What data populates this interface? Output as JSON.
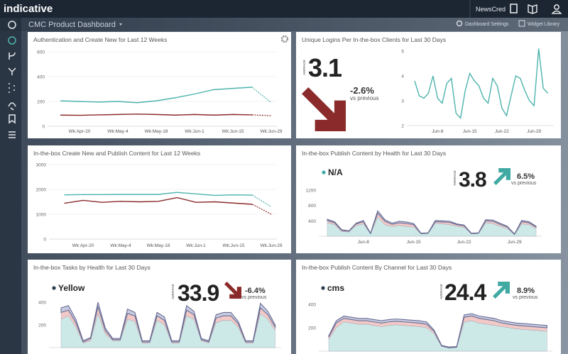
{
  "header": {
    "logo": "indicative",
    "account": "NewsCred"
  },
  "toolbar": {
    "title": "CMC Product Dashboard",
    "settings": "Dashboard Settings",
    "library": "Widget Library"
  },
  "panels": [
    {
      "title": "Authentication and Create New for Last 12 Weeks",
      "chart": {
        "type": "line",
        "dashed_last": true,
        "grid": true,
        "categories": [
          null,
          "Wk:Apr-20",
          null,
          "Wk:May-4",
          null,
          "Wk:May-18",
          null,
          "Wk:Jun-1",
          null,
          "Wk:Jun-15",
          null,
          "Wk:Jun-29"
        ],
        "series": [
          {
            "color": "#4cb3ad",
            "values": [
              205,
              200,
              195,
              200,
              190,
              205,
              230,
              260,
              295,
              305,
              315,
              190
            ]
          },
          {
            "color": "#8b2a2a",
            "values": [
              90,
              88,
              92,
              95,
              98,
              95,
              90,
              95,
              90,
              95,
              92,
              85
            ]
          }
        ],
        "ylim": [
          0,
          600
        ],
        "yticks": [
          0,
          200,
          400,
          600
        ]
      }
    },
    {
      "title": "Unique Logins Per In-the-box Clients for Last 30 Days",
      "kpi": {
        "label": "AVERAGE",
        "value": "3.1",
        "change": "-2.6%",
        "compare": "vs previous",
        "trend": "down",
        "color": "#8b2a2a"
      },
      "chart": {
        "type": "line",
        "grid": false,
        "categories": [
          null,
          null,
          null,
          null,
          null,
          "Jun-8",
          null,
          null,
          null,
          null,
          null,
          null,
          "Jun-15",
          null,
          null,
          null,
          null,
          null,
          null,
          "Jun-22",
          null,
          null,
          null,
          null,
          null,
          null,
          "Jun-29",
          null,
          null,
          null
        ],
        "series": [
          {
            "color": "#4cb3ad",
            "values": [
              3.8,
              3.2,
              3.1,
              3.3,
              4.0,
              3.1,
              2.9,
              3.7,
              3.9,
              2.5,
              2.3,
              3.4,
              4.1,
              3.8,
              3.6,
              3.1,
              2.9,
              3.9,
              3.6,
              2.7,
              2.4,
              3.2,
              4.0,
              3.9,
              3.4,
              3.0,
              2.8,
              5.1,
              3.5,
              3.3
            ]
          }
        ],
        "ylim": [
          2,
          5
        ],
        "yticks": [
          2,
          3,
          4,
          5
        ]
      }
    },
    {
      "title": "In-the-box Create New and Publish Content for Last 12 Weeks",
      "chart": {
        "type": "line",
        "dashed_last": true,
        "grid": true,
        "categories": [
          null,
          "Wk:Apr-20",
          null,
          "Wk:May-4",
          null,
          "Wk:May-18",
          null,
          "Wk:Jun-1",
          null,
          "Wk:Jun-15",
          null,
          "Wk:Jun-29"
        ],
        "series": [
          {
            "color": "#4cb3ad",
            "values": [
              1780,
              1790,
              1790,
              1800,
              1800,
              1800,
              1880,
              1820,
              1760,
              1780,
              1770,
              1300
            ]
          },
          {
            "color": "#8b2a2a",
            "values": [
              1440,
              1560,
              1480,
              1520,
              1500,
              1520,
              1670,
              1480,
              1500,
              1450,
              1400,
              1000
            ]
          }
        ],
        "ylim": [
          0,
          3000
        ],
        "yticks": [
          0,
          1000,
          2000,
          3000
        ]
      }
    },
    {
      "title": "In-the-box Publish Content by Health for Last 30 Days",
      "kpi": {
        "label": "AVERAGE",
        "value": "3.8",
        "change": "6.5%",
        "compare": "vs previous",
        "trend": "up",
        "color": "#3fa9a2"
      },
      "chart": {
        "type": "area",
        "grid": false,
        "categories": [
          null,
          null,
          null,
          null,
          null,
          "Jun-8",
          null,
          null,
          null,
          null,
          null,
          null,
          "Jun-15",
          null,
          null,
          null,
          null,
          null,
          null,
          "Jun-22",
          null,
          null,
          null,
          null,
          null,
          null,
          "Jun-29",
          null,
          null,
          null
        ],
        "series": [
          {
            "name": "N/A",
            "color": "#cde9e7",
            "values": [
              350,
              300,
              120,
              110,
              280,
              320,
              60,
              500,
              300,
              250,
              280,
              250,
              240,
              60,
              70,
              340,
              320,
              300,
              260,
              230,
              60,
              70,
              350,
              330,
              260,
              200,
              40,
              320,
              300,
              200
            ]
          },
          {
            "color": "#f2c9c6",
            "values": [
              60,
              50,
              30,
              20,
              40,
              60,
              10,
              100,
              90,
              60,
              70,
              80,
              60,
              10,
              10,
              40,
              50,
              60,
              40,
              40,
              10,
              10,
              50,
              60,
              50,
              40,
              10,
              60,
              50,
              40
            ]
          },
          {
            "color": "#c7cbe0",
            "values": [
              30,
              30,
              20,
              10,
              20,
              30,
              10,
              60,
              40,
              30,
              40,
              40,
              30,
              10,
              10,
              30,
              30,
              30,
              20,
              20,
              10,
              10,
              30,
              30,
              30,
              20,
              10,
              30,
              30,
              20
            ]
          }
        ],
        "ylim": [
          0,
          1200
        ],
        "yticks": [
          400,
          800,
          1200
        ]
      }
    },
    {
      "title": "In-the-box Tasks by Health for Last 30 Days",
      "kpi": {
        "label": "AVERAGE",
        "value": "33.9",
        "change": "-6.4%",
        "compare": "vs previous",
        "trend": "down",
        "color": "#8b2a2a"
      },
      "chart": {
        "type": "area",
        "grid": false,
        "series": [
          {
            "name": "Yellow",
            "color": "#cde9e7",
            "values": [
              250,
              280,
              180,
              40,
              60,
              300,
              120,
              60,
              60,
              250,
              230,
              40,
              40,
              240,
              200,
              40,
              40,
              280,
              250,
              60,
              40,
              220,
              240,
              240,
              180,
              40,
              40,
              300,
              250,
              150
            ]
          },
          {
            "color": "#f2c9c6",
            "values": [
              60,
              50,
              40,
              10,
              20,
              60,
              30,
              10,
              10,
              50,
              50,
              10,
              10,
              40,
              40,
              10,
              10,
              50,
              40,
              10,
              10,
              40,
              40,
              40,
              30,
              10,
              10,
              50,
              40,
              30
            ]
          },
          {
            "color": "#c7cbe0",
            "values": [
              40,
              40,
              30,
              10,
              10,
              40,
              20,
              10,
              10,
              40,
              30,
              10,
              10,
              30,
              30,
              10,
              10,
              40,
              30,
              10,
              10,
              30,
              30,
              30,
              20,
              10,
              10,
              40,
              30,
              20
            ]
          }
        ],
        "ylim": [
          0,
          450
        ],
        "yticks": [
          200,
          400
        ]
      }
    },
    {
      "title": "In-the-box Publish Content By Channel for Last 30 Days",
      "kpi": {
        "label": "AVERAGE",
        "value": "24.4",
        "change": "8.9%",
        "compare": "vs previous",
        "trend": "up",
        "color": "#3fa9a2"
      },
      "chart": {
        "type": "area",
        "grid": false,
        "series": [
          {
            "name": "cms",
            "color": "#cde9e7",
            "values": [
              100,
              200,
              250,
              240,
              230,
              230,
              220,
              210,
              220,
              225,
              220,
              215,
              210,
              200,
              150,
              40,
              25,
              30,
              250,
              260,
              240,
              230,
              220,
              210,
              200,
              190,
              185,
              180,
              175,
              170
            ]
          },
          {
            "color": "#f2c9c6",
            "values": [
              20,
              40,
              30,
              30,
              30,
              30,
              30,
              30,
              30,
              30,
              30,
              30,
              30,
              30,
              20,
              5,
              5,
              5,
              40,
              40,
              40,
              40,
              40,
              30,
              30,
              30,
              30,
              30,
              30,
              30
            ]
          },
          {
            "color": "#c7cbe0",
            "values": [
              10,
              20,
              20,
              20,
              20,
              20,
              20,
              20,
              20,
              20,
              20,
              20,
              20,
              20,
              10,
              5,
              5,
              5,
              20,
              20,
              20,
              20,
              20,
              20,
              20,
              20,
              20,
              20,
              20,
              20
            ]
          }
        ],
        "ylim": [
          0,
          480
        ],
        "yticks": [
          200,
          400
        ]
      }
    }
  ]
}
